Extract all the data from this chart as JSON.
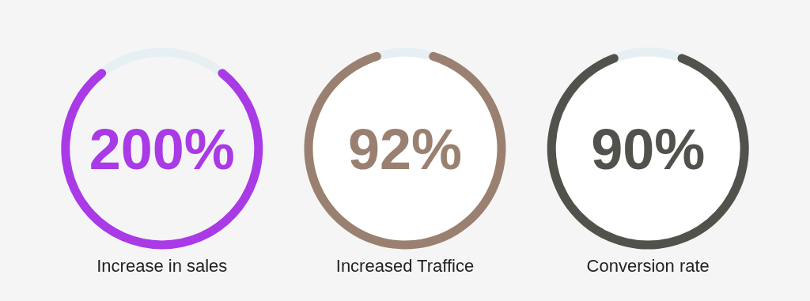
{
  "chart_data": [
    {
      "type": "other",
      "categories": [
        "Increase in sales"
      ],
      "colors": [
        "#a93ae6"
      ],
      "value_labels": [
        "200%"
      ]
    },
    {
      "type": "donut",
      "categories": [
        "Increased Traffice",
        null
      ],
      "values": [
        92,
        8
      ],
      "colors": [
        "#9a8070",
        "#e6eff2"
      ],
      "value_labels": [
        "92%",
        null
      ]
    },
    {
      "type": "donut",
      "categories": [
        "Conversion rate",
        null
      ],
      "values": [
        90,
        10
      ],
      "colors": [
        "#51524c",
        "#e6eff2"
      ],
      "value_labels": [
        "90%",
        null
      ]
    }
  ]
}
